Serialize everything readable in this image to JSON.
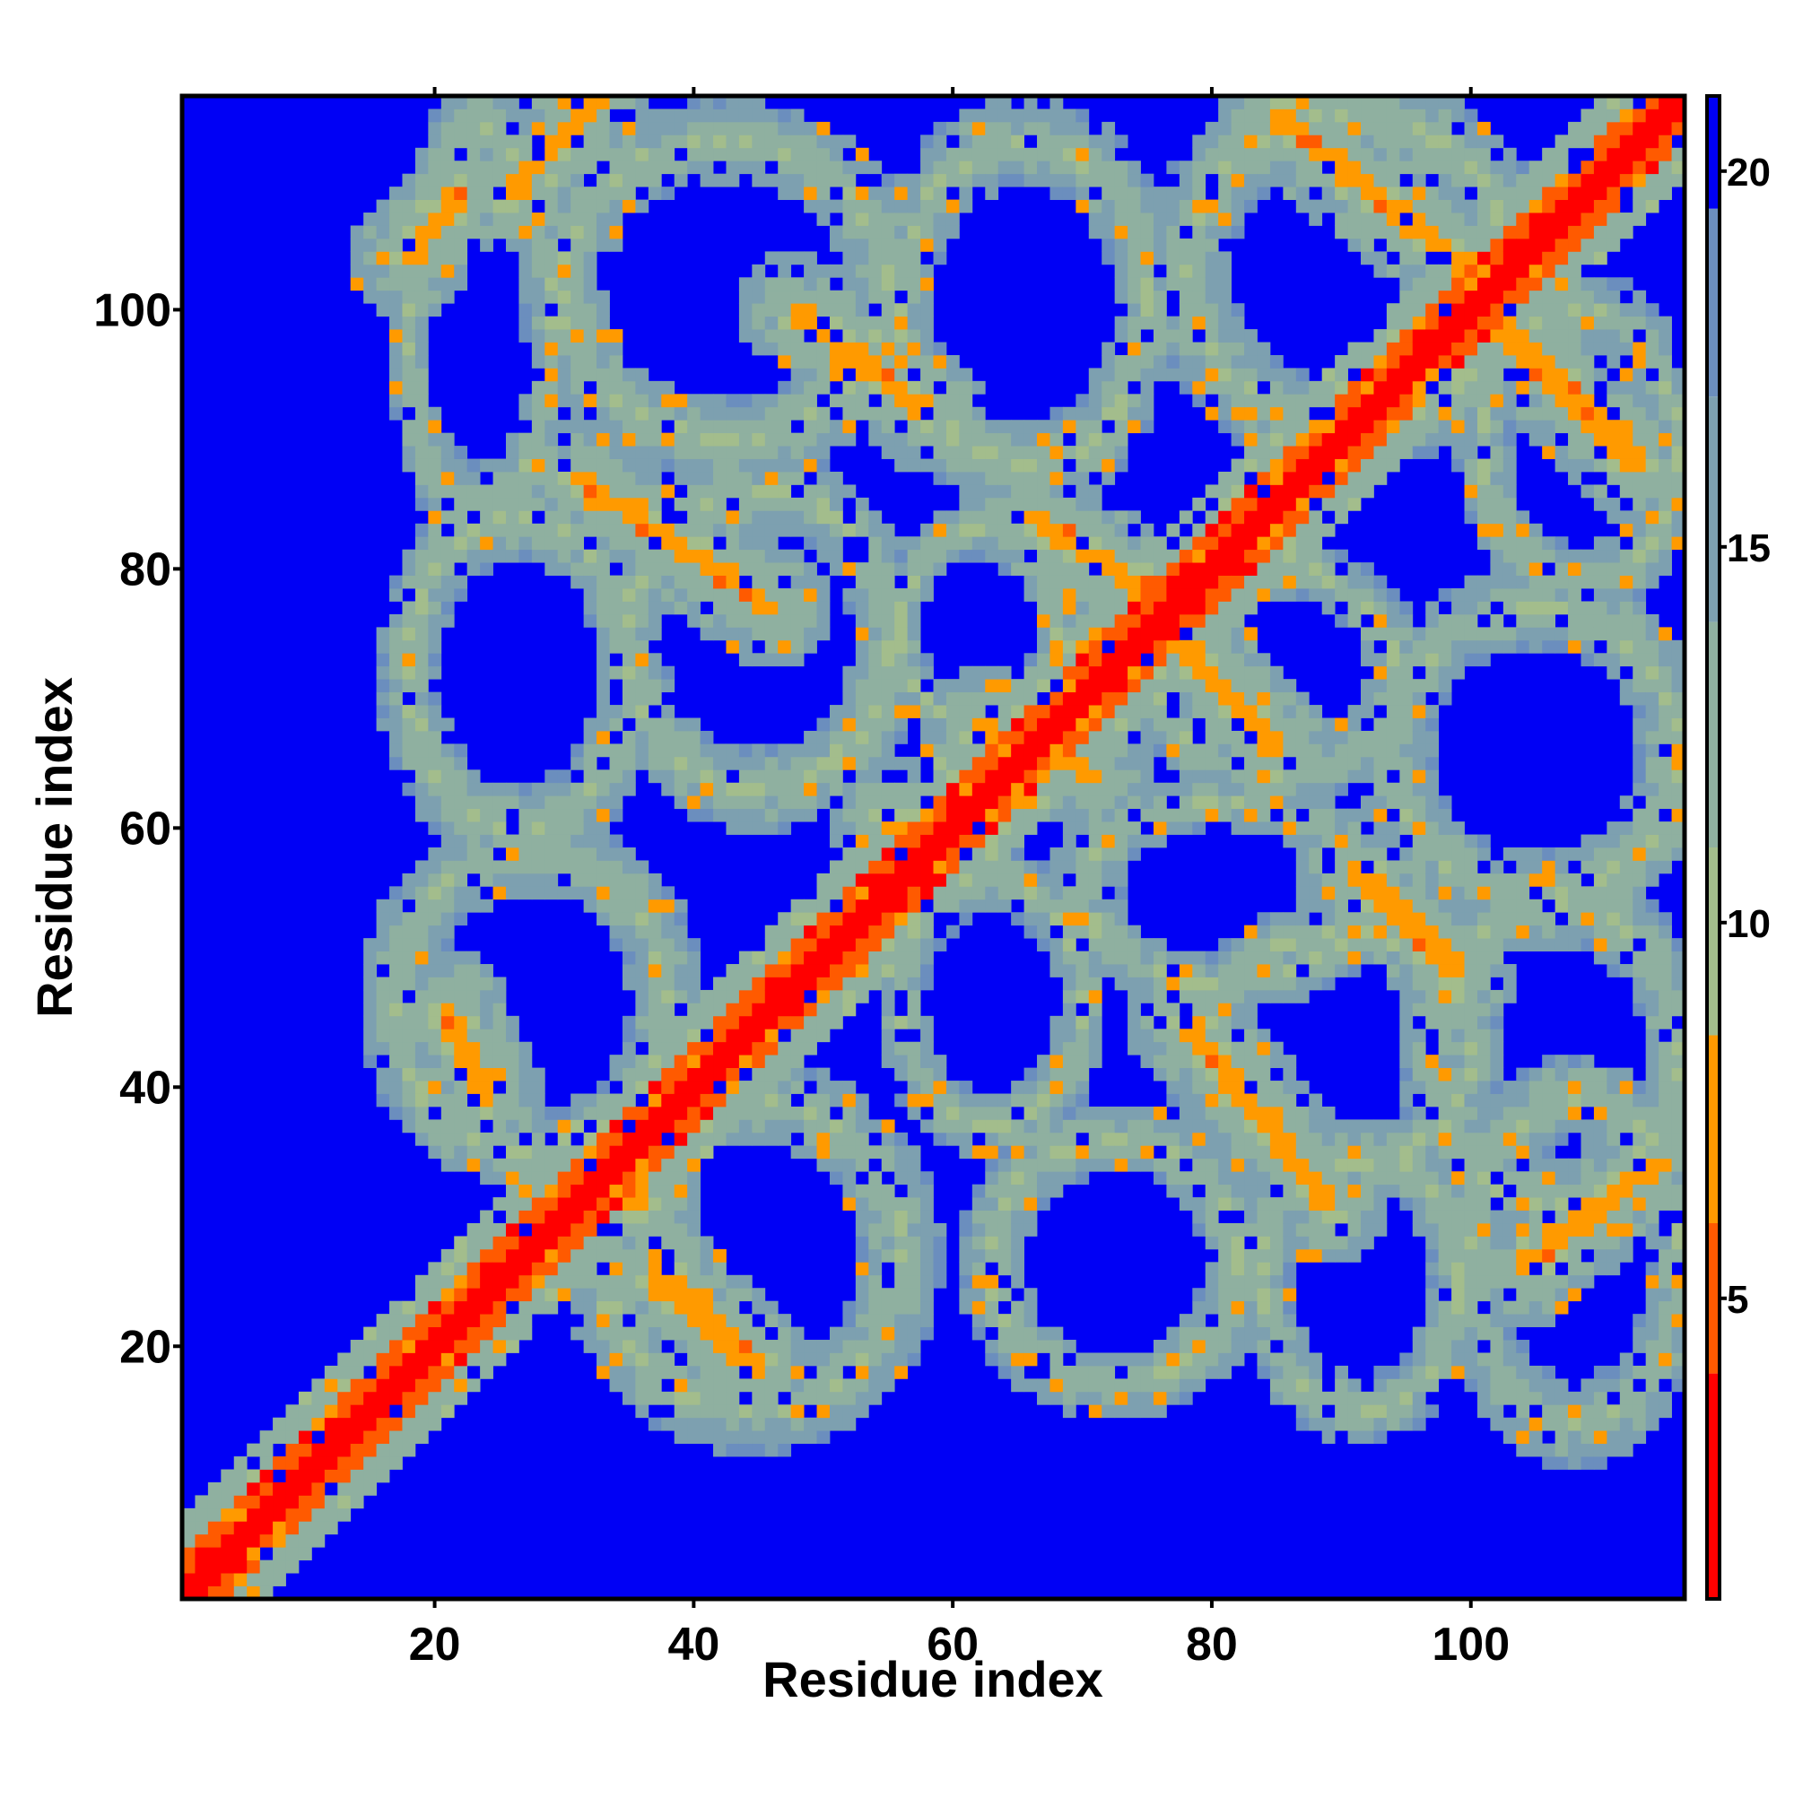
{
  "chart_data": {
    "type": "heatmap",
    "title": "",
    "xlabel": "Residue index",
    "ylabel": "Residue index",
    "xlim": [
      1,
      116
    ],
    "ylim": [
      1,
      116
    ],
    "x_ticks": [
      20,
      40,
      60,
      80,
      100
    ],
    "y_ticks": [
      20,
      40,
      60,
      80,
      100
    ],
    "x_tick_labels": [
      "20",
      "40",
      "60",
      "80",
      "100"
    ],
    "y_tick_labels": [
      "20",
      "40",
      "60",
      "80",
      "100"
    ],
    "colorbar": {
      "ticks": [
        5,
        10,
        15,
        20
      ],
      "tick_labels": [
        "5",
        "10",
        "15",
        "20"
      ],
      "range": [
        1,
        21
      ],
      "colors": [
        {
          "max": 4,
          "color": "#ff0000"
        },
        {
          "max": 6,
          "color": "#ff5a00"
        },
        {
          "max": 8.5,
          "color": "#ff9a00"
        },
        {
          "max": 11,
          "color": "#a3bd8c"
        },
        {
          "max": 14,
          "color": "#8fb0a0"
        },
        {
          "max": 17,
          "color": "#7da0b0"
        },
        {
          "max": 19.5,
          "color": "#6b8ebe"
        },
        {
          "max": 21,
          "color": "#0000f5"
        }
      ]
    },
    "diagonal": {
      "start": 1,
      "end": 116
    },
    "contact_bands": [
      {
        "x": [
          21,
          24
        ],
        "y": [
          46,
          39
        ]
      },
      {
        "x": [
          26,
          33
        ],
        "y": [
          109,
          117
        ]
      },
      {
        "x": [
          18,
          22
        ],
        "y": [
          104,
          109
        ]
      },
      {
        "x": [
          31,
          46
        ],
        "y": [
          87,
          77
        ]
      },
      {
        "x": [
          37,
          45
        ],
        "y": [
          26,
          18
        ]
      },
      {
        "x": [
          48,
          58
        ],
        "y": [
          100,
          92
        ]
      },
      {
        "x": [
          66,
          77
        ],
        "y": [
          84,
          77
        ]
      },
      {
        "x": [
          78,
          85
        ],
        "y": [
          74,
          66
        ]
      },
      {
        "x": [
          78,
          89
        ],
        "y": [
          45,
          31
        ]
      },
      {
        "x": [
          91,
          99
        ],
        "y": [
          57,
          49
        ]
      },
      {
        "x": [
          85,
          100
        ],
        "y": [
          115,
          103
        ]
      },
      {
        "x": [
          101,
          113
        ],
        "y": [
          100,
          88
        ]
      },
      {
        "x": [
          104,
          114
        ],
        "y": [
          26,
          34
        ]
      },
      {
        "x": [
          55,
          57
        ],
        "y": [
          61,
          57
        ]
      },
      {
        "x": [
          62,
          71
        ],
        "y": [
          68,
          64
        ]
      },
      {
        "x": [
          33,
          36
        ],
        "y": [
          34,
          31
        ]
      }
    ],
    "contact_loops": [
      {
        "x": [
          18,
          29
        ],
        "y": [
          84,
          114
        ]
      },
      {
        "x": [
          30,
          55
        ],
        "y": [
          90,
          113
        ]
      },
      {
        "x": [
          56,
          75
        ],
        "y": [
          88,
          113
        ]
      },
      {
        "x": [
          78,
          103
        ],
        "y": [
          91,
          115
        ]
      },
      {
        "x": [
          101,
          116
        ],
        "y": [
          79,
          100
        ]
      },
      {
        "x": [
          18,
          35
        ],
        "y": [
          60,
          84
        ]
      },
      {
        "x": [
          35,
          55
        ],
        "y": [
          63,
          86
        ]
      },
      {
        "x": [
          56,
          68
        ],
        "y": [
          68,
          83
        ]
      },
      {
        "x": [
          76,
          94
        ],
        "y": [
          64,
          80
        ]
      },
      {
        "x": [
          94,
          116
        ],
        "y": [
          55,
          77
        ]
      },
      {
        "x": [
          17,
          38
        ],
        "y": [
          35,
          58
        ]
      },
      {
        "x": [
          56,
          70
        ],
        "y": [
          37,
          56
        ]
      },
      {
        "x": [
          70,
          92
        ],
        "y": [
          48,
          62
        ]
      },
      {
        "x": [
          80,
          100
        ],
        "y": [
          34,
          52
        ]
      },
      {
        "x": [
          97,
          116
        ],
        "y": [
          31,
          54
        ]
      },
      {
        "x": [
          33,
          56
        ],
        "y": [
          15,
          39
        ]
      },
      {
        "x": [
          63,
          82
        ],
        "y": [
          17,
          36
        ]
      },
      {
        "x": [
          84,
          99
        ],
        "y": [
          15,
          35
        ]
      },
      {
        "x": [
          100,
          116
        ],
        "y": [
          14,
          39
        ]
      }
    ]
  }
}
